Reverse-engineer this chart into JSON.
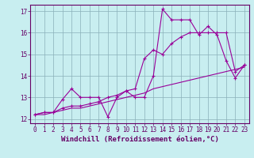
{
  "title": "",
  "xlabel": "Windchill (Refroidissement éolien,°C)",
  "ylabel": "",
  "background_color": "#c8eef0",
  "grid_color": "#8ab0b8",
  "line_color": "#990099",
  "xlim": [
    -0.5,
    23.5
  ],
  "ylim": [
    11.8,
    17.3
  ],
  "x": [
    0,
    1,
    2,
    3,
    4,
    5,
    6,
    7,
    8,
    9,
    10,
    11,
    12,
    13,
    14,
    15,
    16,
    17,
    18,
    19,
    20,
    21,
    22,
    23
  ],
  "line1": [
    12.2,
    12.3,
    12.3,
    12.9,
    13.4,
    13.0,
    13.0,
    13.0,
    12.1,
    13.0,
    13.3,
    13.0,
    13.0,
    14.0,
    17.1,
    16.6,
    16.6,
    16.6,
    15.9,
    16.3,
    15.9,
    14.7,
    13.9,
    14.5
  ],
  "line2": [
    12.2,
    12.3,
    12.3,
    12.5,
    12.6,
    12.6,
    12.7,
    12.8,
    13.0,
    13.1,
    13.3,
    13.4,
    14.8,
    15.2,
    15.0,
    15.5,
    15.8,
    16.0,
    16.0,
    16.0,
    16.0,
    16.0,
    14.2,
    14.5
  ],
  "line3": [
    12.2,
    12.2,
    12.3,
    12.4,
    12.5,
    12.5,
    12.6,
    12.7,
    12.8,
    12.9,
    13.0,
    13.1,
    13.2,
    13.4,
    13.5,
    13.6,
    13.7,
    13.8,
    13.9,
    14.0,
    14.1,
    14.2,
    14.3,
    14.4
  ],
  "yticks": [
    12,
    13,
    14,
    15,
    16,
    17
  ],
  "xticks": [
    0,
    1,
    2,
    3,
    4,
    5,
    6,
    7,
    8,
    9,
    10,
    11,
    12,
    13,
    14,
    15,
    16,
    17,
    18,
    19,
    20,
    21,
    22,
    23
  ],
  "font_color": "#660066",
  "axis_color": "#660066",
  "tick_fontsize": 5.5,
  "xlabel_fontsize": 6.5
}
